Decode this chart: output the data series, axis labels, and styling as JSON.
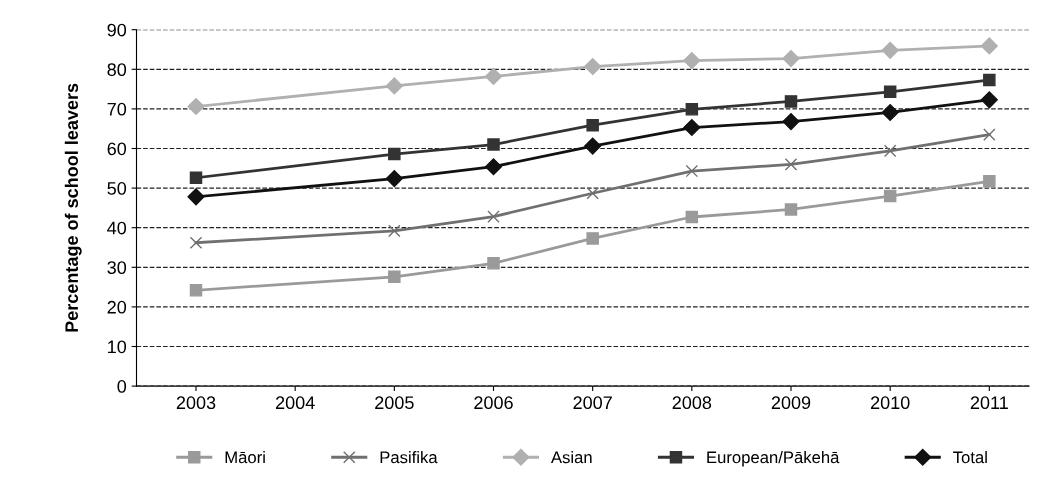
{
  "chart_data": {
    "type": "line",
    "ylabel": "Percentage of school leavers",
    "x": [
      2003,
      2005,
      2006,
      2007,
      2008,
      2009,
      2010,
      2011
    ],
    "xlim": [
      2002.4,
      2011.4
    ],
    "xticks": [
      2003,
      2004,
      2005,
      2006,
      2007,
      2008,
      2009,
      2010,
      2011
    ],
    "ylim": [
      0,
      90
    ],
    "yticks": [
      0,
      10,
      20,
      30,
      40,
      50,
      60,
      70,
      80,
      90
    ],
    "grid": "y",
    "legend": "bottom",
    "line_style": "solid",
    "series": [
      {
        "name": "Māori",
        "color": "#9a9a9a",
        "marker": "square",
        "values": [
          24.2,
          27.6,
          31.0,
          37.3,
          42.7,
          44.6,
          48.0,
          51.7
        ]
      },
      {
        "name": "Pasifika",
        "color": "#707070",
        "marker": "cross",
        "values": [
          36.2,
          39.2,
          42.8,
          48.7,
          54.3,
          56.0,
          59.4,
          63.5
        ]
      },
      {
        "name": "Asian",
        "color": "#b0b0b0",
        "marker": "diamond",
        "values": [
          70.6,
          75.8,
          78.2,
          80.7,
          82.2,
          82.7,
          84.8,
          85.9
        ]
      },
      {
        "name": "European/Pākehā",
        "color": "#333333",
        "marker": "square",
        "values": [
          52.6,
          58.6,
          61.0,
          65.9,
          69.9,
          71.9,
          74.3,
          77.3
        ]
      },
      {
        "name": "Total",
        "color": "#111111",
        "marker": "diamond",
        "values": [
          47.8,
          52.4,
          55.4,
          60.6,
          65.3,
          66.8,
          69.1,
          72.3
        ]
      }
    ]
  }
}
